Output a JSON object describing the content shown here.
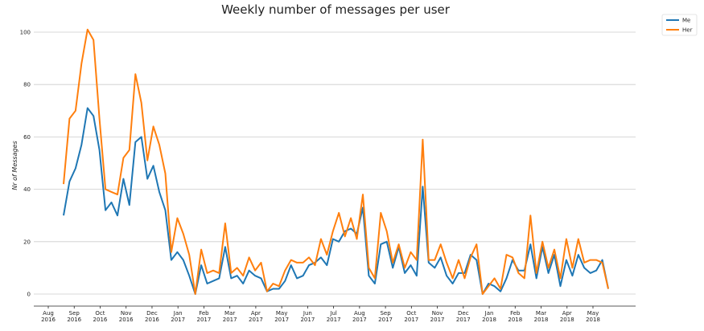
{
  "chart_data": {
    "type": "line",
    "title": "Weekly number of messages per user",
    "xlabel": "",
    "ylabel": "Nr of Messages",
    "ylim": [
      0,
      100
    ],
    "yticks": [
      0,
      20,
      40,
      60,
      80,
      100
    ],
    "grid": "horizontal",
    "legend_position": "top-right",
    "x_tick_labels": [
      [
        "Aug",
        "2016"
      ],
      [
        "Sep",
        "2016"
      ],
      [
        "Oct",
        "2016"
      ],
      [
        "Nov",
        "2016"
      ],
      [
        "Dec",
        "2016"
      ],
      [
        "Jan",
        "2017"
      ],
      [
        "Feb",
        "2017"
      ],
      [
        "Mar",
        "2017"
      ],
      [
        "Apr",
        "2017"
      ],
      [
        "May",
        "2017"
      ],
      [
        "Jun",
        "2017"
      ],
      [
        "Jul",
        "2017"
      ],
      [
        "Aug",
        "2017"
      ],
      [
        "Sep",
        "2017"
      ],
      [
        "Oct",
        "2017"
      ],
      [
        "Nov",
        "2017"
      ],
      [
        "Dec",
        "2017"
      ],
      [
        "Jan",
        "2018"
      ],
      [
        "Feb",
        "2018"
      ],
      [
        "Mar",
        "2018"
      ],
      [
        "Apr",
        "2018"
      ],
      [
        "May",
        "2018"
      ]
    ],
    "series": [
      {
        "name": "Me",
        "color": "#1f77b4",
        "values": [
          30,
          43,
          48,
          57,
          71,
          68,
          55,
          32,
          35,
          30,
          44,
          34,
          58,
          60,
          44,
          49,
          39,
          32,
          13,
          16,
          13,
          7,
          0,
          11,
          4,
          5,
          6,
          18,
          6,
          7,
          4,
          9,
          7,
          6,
          1,
          2,
          2,
          5,
          11,
          6,
          7,
          11,
          12,
          14,
          11,
          21,
          20,
          24,
          25,
          23,
          33,
          7,
          4,
          19,
          20,
          10,
          18,
          8,
          11,
          7,
          41,
          12,
          10,
          14,
          7,
          4,
          8,
          8,
          15,
          13,
          0,
          4,
          3,
          1,
          6,
          13,
          9,
          9,
          19,
          6,
          18,
          8,
          15,
          3,
          13,
          7,
          15,
          10,
          8,
          9,
          13,
          2
        ]
      },
      {
        "name": "Her",
        "color": "#ff7f0e",
        "values": [
          42,
          67,
          70,
          88,
          101,
          97,
          67,
          40,
          39,
          38,
          52,
          55,
          84,
          73,
          51,
          64,
          57,
          46,
          16,
          29,
          23,
          15,
          0,
          17,
          8,
          9,
          8,
          27,
          8,
          10,
          7,
          14,
          9,
          12,
          1,
          4,
          3,
          9,
          13,
          12,
          12,
          14,
          11,
          21,
          15,
          24,
          31,
          22,
          29,
          21,
          38,
          10,
          6,
          31,
          24,
          12,
          19,
          10,
          16,
          13,
          59,
          13,
          13,
          19,
          12,
          6,
          13,
          6,
          14,
          19,
          0,
          3,
          6,
          2,
          15,
          14,
          8,
          6,
          30,
          8,
          20,
          10,
          17,
          6,
          21,
          10,
          21,
          12,
          13,
          13,
          12,
          2
        ]
      }
    ]
  }
}
